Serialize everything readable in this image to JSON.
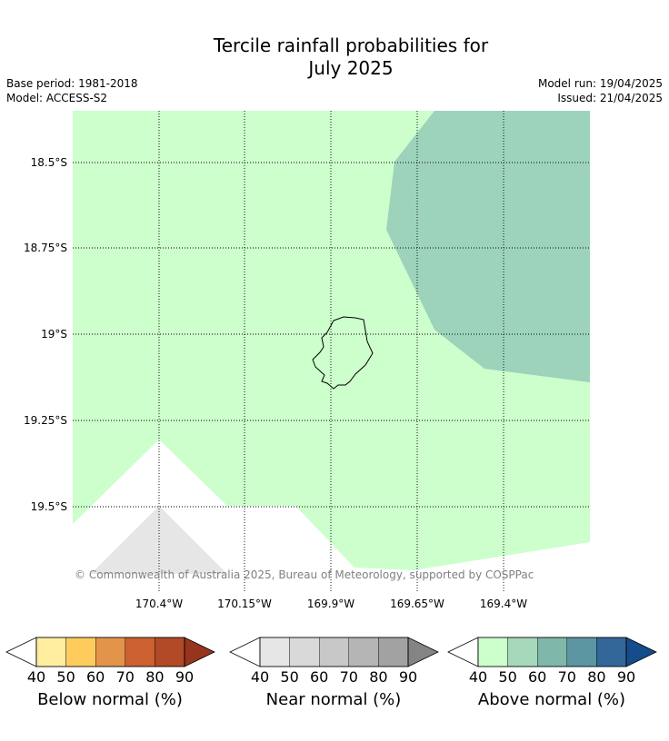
{
  "title_line1": "Tercile rainfall probabilities for",
  "title_line2": "July 2025",
  "meta_left": {
    "base_period": "Base period: 1981-2018",
    "model": "Model: ACCESS-S2"
  },
  "meta_right": {
    "model_run": "Model run: 19/04/2025",
    "issued": "Issued: 21/04/2025"
  },
  "map": {
    "lat_labels": [
      "18.5°S",
      "18.75°S",
      "19°S",
      "19.25°S",
      "19.5°S"
    ],
    "lon_labels": [
      "170.4°W",
      "170.15°W",
      "169.9°W",
      "169.65°W",
      "169.4°W"
    ],
    "colors": {
      "above_40": "#ccffcc",
      "above_50": "#9dd3bb",
      "near_40": "#e6e6e6"
    },
    "copyright": "© Commonwealth of Australia 2025, Bureau of Meteorology, supported by COSPPac"
  },
  "legends": [
    {
      "label": "Below normal (%)",
      "ticks": [
        "40",
        "50",
        "60",
        "70",
        "80",
        "90"
      ],
      "colors": [
        "#ffffff",
        "#ffeda0",
        "#fecc5c",
        "#e2954a",
        "#cc6030",
        "#b24a28",
        "#96341e"
      ]
    },
    {
      "label": "Near normal (%)",
      "ticks": [
        "40",
        "50",
        "60",
        "70",
        "80",
        "90"
      ],
      "colors": [
        "#ffffff",
        "#e6e6e6",
        "#d9d9d9",
        "#c8c8c8",
        "#b5b5b5",
        "#a2a2a2",
        "#848484"
      ]
    },
    {
      "label": "Above normal (%)",
      "ticks": [
        "40",
        "50",
        "60",
        "70",
        "80",
        "90"
      ],
      "colors": [
        "#ffffff",
        "#ccffcc",
        "#a6d9bb",
        "#7fb7aa",
        "#5b96a2",
        "#336699",
        "#144c8c"
      ]
    }
  ]
}
